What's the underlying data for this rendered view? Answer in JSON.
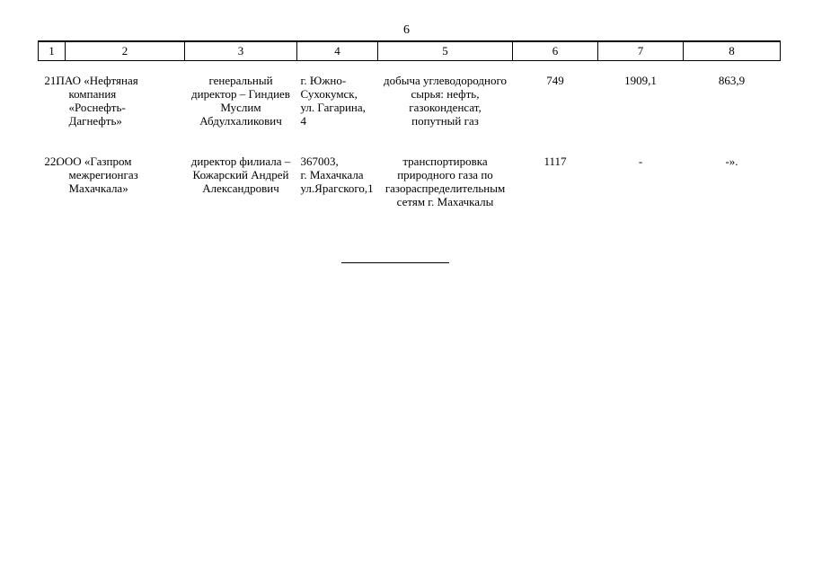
{
  "page": {
    "number": "6"
  },
  "table": {
    "header": [
      "1",
      "2",
      "3",
      "4",
      "5",
      "6",
      "7",
      "8"
    ],
    "rows": [
      {
        "num": "21.",
        "name": "ПАО «Нефтяная\nкомпания\n«Роснефть-\nДагнефть»",
        "director": "генеральный\nдиректор – Гиндиев\nМуслим\nАбдулхаликович",
        "address": "г. Южно-\nСухокумск,\nул. Гагарина, 4",
        "activity": "добыча углеводородного\nсырья: нефть,\nгазоконденсат,\nпопутный газ",
        "c6": "749",
        "c7": "1909,1",
        "c8": "863,9"
      },
      {
        "num": "22.",
        "name": "ООО «Газпром\nмежрегионгаз\nМахачкала»",
        "director": "директор филиала –\nКожарский Андрей\nАлександрович",
        "address": "367003,\nг. Махачкала\nул.Ярагского,1",
        "activity": "транспортировка\nприродного газа по\nгазораспределительным\nсетям г. Махачкалы",
        "c6": "1117",
        "c7": "-",
        "c8": "-»."
      }
    ]
  }
}
